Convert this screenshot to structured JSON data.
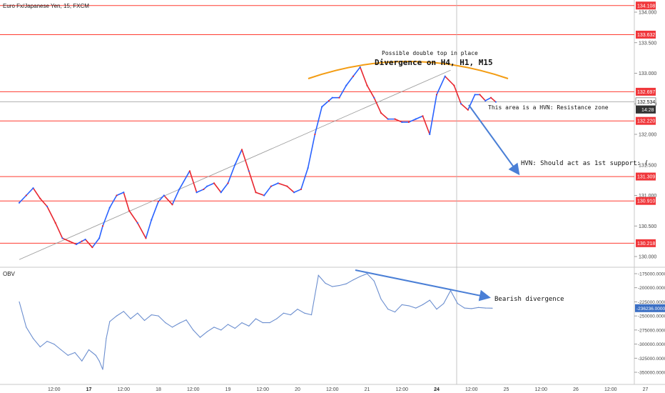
{
  "header": {
    "title": "Euro Fx/Japanese Yen, 15, FXCM"
  },
  "chart_data": {
    "type": "line",
    "price_axis": {
      "ylim": [
        129.95,
        134.2
      ],
      "tick_values": [
        130.0,
        130.5,
        131.0,
        131.5,
        132.0,
        132.5,
        133.0,
        133.5,
        134.0
      ],
      "tick_labels": [
        "130.000",
        "130.500",
        "131.000",
        "131.500",
        "132.000",
        "132.500",
        "133.000",
        "133.500",
        "134.000"
      ]
    },
    "levels": [
      {
        "value": 134.108,
        "label": "134.108"
      },
      {
        "value": 133.632,
        "label": "133.632"
      },
      {
        "value": 132.697,
        "label": "132.697"
      },
      {
        "value": 132.22,
        "label": "132.220"
      },
      {
        "value": 131.309,
        "label": "131.309"
      },
      {
        "value": 130.91,
        "label": "130.910"
      },
      {
        "value": 130.218,
        "label": "130.218"
      }
    ],
    "last_price": {
      "value": 132.534,
      "label": "132.534",
      "countdown": "14:28"
    },
    "x_axis": {
      "labels": [
        {
          "x": 0.5,
          "label": "12:00",
          "bold": false
        },
        {
          "x": 1.0,
          "label": "17",
          "bold": true
        },
        {
          "x": 1.5,
          "label": "12:00",
          "bold": false
        },
        {
          "x": 2.0,
          "label": "18",
          "bold": false
        },
        {
          "x": 2.5,
          "label": "12:00",
          "bold": false
        },
        {
          "x": 3.0,
          "label": "19",
          "bold": false
        },
        {
          "x": 3.5,
          "label": "12:00",
          "bold": false
        },
        {
          "x": 4.0,
          "label": "20",
          "bold": false
        },
        {
          "x": 4.5,
          "label": "12:00",
          "bold": false
        },
        {
          "x": 5.0,
          "label": "21",
          "bold": false
        },
        {
          "x": 5.5,
          "label": "12:00",
          "bold": false
        },
        {
          "x": 6.0,
          "label": "24",
          "bold": true
        },
        {
          "x": 6.5,
          "label": "12:00",
          "bold": false
        },
        {
          "x": 7.0,
          "label": "25",
          "bold": false
        },
        {
          "x": 7.5,
          "label": "12:00",
          "bold": false
        },
        {
          "x": 8.0,
          "label": "26",
          "bold": false
        },
        {
          "x": 8.5,
          "label": "12:00",
          "bold": false
        },
        {
          "x": 9.0,
          "label": "27",
          "bold": false
        }
      ]
    },
    "price_series": {
      "name": "",
      "x": [
        0.0,
        0.1,
        0.2,
        0.3,
        0.4,
        0.52,
        0.62,
        0.72,
        0.82,
        0.9,
        0.95,
        1.05,
        1.15,
        1.2,
        1.3,
        1.4,
        1.5,
        1.58,
        1.7,
        1.82,
        1.9,
        2.0,
        2.08,
        2.2,
        2.3,
        2.45,
        2.55,
        2.65,
        2.7,
        2.8,
        2.9,
        3.0,
        3.1,
        3.2,
        3.3,
        3.4,
        3.52,
        3.62,
        3.72,
        3.85,
        3.95,
        4.05,
        4.15,
        4.25,
        4.35,
        4.45,
        4.5,
        4.6,
        4.7,
        4.8,
        4.9,
        5.0,
        5.1,
        5.2,
        5.3,
        5.4,
        5.5,
        5.6,
        5.7,
        5.8,
        5.9,
        6.0,
        6.12,
        6.25,
        6.35,
        6.45,
        6.55,
        6.62,
        6.7,
        6.78,
        6.85
      ],
      "values": [
        130.88,
        131.0,
        131.12,
        130.95,
        130.82,
        130.55,
        130.3,
        130.25,
        130.2,
        130.25,
        130.28,
        130.15,
        130.3,
        130.5,
        130.8,
        131.0,
        131.05,
        130.75,
        130.55,
        130.3,
        130.6,
        130.9,
        131.0,
        130.85,
        131.1,
        131.4,
        131.05,
        131.1,
        131.15,
        131.2,
        131.05,
        131.2,
        131.5,
        131.75,
        131.4,
        131.05,
        131.0,
        131.15,
        131.2,
        131.15,
        131.05,
        131.1,
        131.45,
        132.0,
        132.45,
        132.55,
        132.6,
        132.6,
        132.8,
        132.95,
        133.1,
        132.8,
        132.6,
        132.35,
        132.25,
        132.25,
        132.2,
        132.2,
        132.25,
        132.3,
        132.0,
        132.65,
        132.95,
        132.8,
        132.5,
        132.4,
        132.65,
        132.65,
        132.55,
        132.6,
        132.53
      ]
    },
    "obv": {
      "name": "OBV",
      "ylim": [
        -355000,
        -170000
      ],
      "tick_values": [
        -175000,
        -200000,
        -225000,
        -250000,
        -275000,
        -300000,
        -325000,
        -350000
      ],
      "tick_labels": [
        "-175000.0000",
        "-200000.0000",
        "-225000.0000",
        "-250000.0000",
        "-275000.0000",
        "-300000.0000",
        "-325000.0000",
        "-350000.0000"
      ],
      "current": {
        "value": -236236,
        "label": "-236236.0000"
      },
      "x": [
        0.0,
        0.1,
        0.2,
        0.3,
        0.4,
        0.5,
        0.6,
        0.7,
        0.8,
        0.9,
        1.0,
        1.1,
        1.15,
        1.2,
        1.25,
        1.3,
        1.4,
        1.5,
        1.6,
        1.7,
        1.8,
        1.9,
        2.0,
        2.1,
        2.2,
        2.3,
        2.4,
        2.5,
        2.6,
        2.7,
        2.8,
        2.9,
        3.0,
        3.1,
        3.2,
        3.3,
        3.4,
        3.5,
        3.6,
        3.7,
        3.8,
        3.9,
        4.0,
        4.1,
        4.2,
        4.3,
        4.4,
        4.5,
        4.6,
        4.7,
        4.8,
        4.9,
        5.0,
        5.1,
        5.2,
        5.3,
        5.4,
        5.5,
        5.6,
        5.7,
        5.8,
        5.9,
        6.0,
        6.1,
        6.2,
        6.3,
        6.4,
        6.5,
        6.6,
        6.7,
        6.8
      ],
      "values": [
        -225000,
        -270000,
        -290000,
        -305000,
        -295000,
        -300000,
        -310000,
        -320000,
        -315000,
        -330000,
        -310000,
        -320000,
        -330000,
        -345000,
        -290000,
        -260000,
        -250000,
        -242000,
        -255000,
        -245000,
        -258000,
        -248000,
        -250000,
        -262000,
        -270000,
        -263000,
        -257000,
        -275000,
        -288000,
        -278000,
        -270000,
        -275000,
        -265000,
        -272000,
        -262000,
        -268000,
        -255000,
        -262000,
        -262000,
        -255000,
        -245000,
        -248000,
        -238000,
        -245000,
        -248000,
        -178000,
        -192000,
        -198000,
        -196000,
        -193000,
        -186000,
        -180000,
        -175000,
        -188000,
        -220000,
        -238000,
        -243000,
        -230000,
        -232000,
        -236000,
        -230000,
        -222000,
        -238000,
        -228000,
        -205000,
        -228000,
        -236000,
        -237000,
        -235000,
        -236000,
        -236236
      ]
    },
    "annotations": {
      "double_top": "Possible double top in place",
      "divergence": "Divergence on H4, H1, M15",
      "resistance": "This area is a HVN: Resistance zone",
      "support": "HVN: Should act as 1st support: (",
      "bearish": "Bearish divergence"
    },
    "colors": {
      "level_line": "#ff3b30",
      "level_fill": "#f0373b",
      "up": "#2962ff",
      "down": "#e8262f",
      "obv_line": "#6b8ecf",
      "arrow": "#4a7fd6",
      "arc": "#f39c12",
      "current_tag": "#333333",
      "obv_tag": "#3b6fc4"
    }
  }
}
